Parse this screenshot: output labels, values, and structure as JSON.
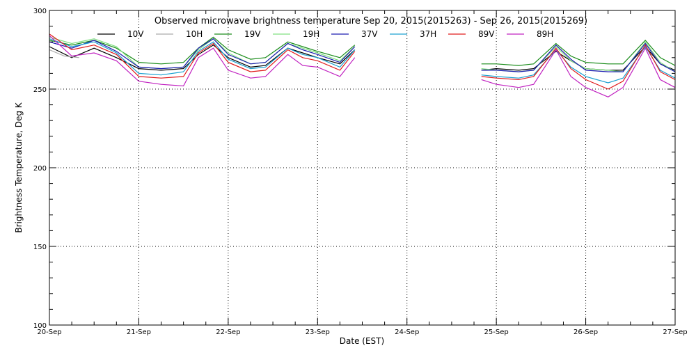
{
  "chart_data": {
    "type": "line",
    "title": "Observed microwave brightness temperature Sep 20, 2015(2015263) - Sep 26, 2015(2015269)",
    "xlabel": "Date (EST)",
    "ylabel": "Brightness Temperature, Deg K",
    "x_ticks": [
      "20-Sep",
      "21-Sep",
      "22-Sep",
      "23-Sep",
      "24-Sep",
      "25-Sep",
      "26-Sep",
      "27-Sep"
    ],
    "xlim": [
      "2015-09-20T00:00",
      "2015-09-27T00:00"
    ],
    "ylim": [
      100,
      300
    ],
    "y_ticks": [
      100,
      150,
      200,
      250,
      300
    ],
    "grid": true,
    "legend_position": "top",
    "series": [
      {
        "name": "10V",
        "color": "#000000",
        "x": [
          "2015-09-20T00:00",
          "2015-09-20T06:00",
          "2015-09-20T12:00",
          "2015-09-20T18:00",
          "2015-09-21T00:00",
          "2015-09-21T06:00",
          "2015-09-21T12:00",
          "2015-09-21T16:00",
          "2015-09-21T20:00",
          "2015-09-22T00:00",
          "2015-09-22T06:00",
          "2015-09-22T10:00",
          "2015-09-22T16:00",
          "2015-09-22T20:00",
          "2015-09-23T00:00",
          "2015-09-23T06:00",
          "2015-09-23T10:00",
          "2015-09-24T20:00",
          "2015-09-25T00:00",
          "2015-09-25T06:00",
          "2015-09-25T10:00",
          "2015-09-25T16:00",
          "2015-09-25T20:00",
          "2015-09-26T00:00",
          "2015-09-26T06:00",
          "2015-09-26T10:00",
          "2015-09-26T16:00",
          "2015-09-26T20:00",
          "2015-09-27T00:00"
        ],
        "y": [
          277,
          270,
          276,
          270,
          263,
          262,
          263,
          272,
          278,
          270,
          264,
          265,
          276,
          273,
          270,
          266,
          275,
          262,
          263,
          262,
          263,
          274,
          268,
          263,
          262,
          262,
          277,
          266,
          262
        ]
      },
      {
        "name": "10H",
        "color": "#aaaaaa",
        "x": [
          "2015-09-20T00:00",
          "2015-09-20T04:00",
          "2015-09-20T08:00"
        ],
        "y": [
          275,
          271,
          270
        ]
      },
      {
        "name": "19V",
        "color": "#1a8c1a",
        "x": [
          "2015-09-20T00:00",
          "2015-09-20T06:00",
          "2015-09-20T12:00",
          "2015-09-20T18:00",
          "2015-09-21T00:00",
          "2015-09-21T06:00",
          "2015-09-21T12:00",
          "2015-09-21T16:00",
          "2015-09-21T20:00",
          "2015-09-22T00:00",
          "2015-09-22T06:00",
          "2015-09-22T10:00",
          "2015-09-22T16:00",
          "2015-09-22T20:00",
          "2015-09-23T00:00",
          "2015-09-23T06:00",
          "2015-09-23T10:00",
          "2015-09-24T20:00",
          "2015-09-25T00:00",
          "2015-09-25T06:00",
          "2015-09-25T10:00",
          "2015-09-25T16:00",
          "2015-09-25T20:00",
          "2015-09-26T00:00",
          "2015-09-26T06:00",
          "2015-09-26T10:00",
          "2015-09-26T16:00",
          "2015-09-26T20:00",
          "2015-09-27T00:00"
        ],
        "y": [
          281,
          278,
          281,
          276,
          267,
          266,
          267,
          276,
          283,
          275,
          269,
          270,
          280,
          277,
          274,
          270,
          278,
          266,
          266,
          265,
          266,
          279,
          271,
          267,
          266,
          266,
          281,
          270,
          265
        ]
      },
      {
        "name": "19H",
        "color": "#80e080",
        "x": [
          "2015-09-20T00:00",
          "2015-09-20T06:00",
          "2015-09-20T12:00",
          "2015-09-20T18:00",
          "2015-09-21T00:00",
          "2015-09-21T06:00",
          "2015-09-21T12:00",
          "2015-09-21T16:00",
          "2015-09-21T20:00",
          "2015-09-22T00:00",
          "2015-09-22T06:00",
          "2015-09-22T10:00",
          "2015-09-22T16:00",
          "2015-09-22T20:00",
          "2015-09-23T00:00",
          "2015-09-23T06:00",
          "2015-09-23T10:00",
          "2015-09-24T20:00",
          "2015-09-25T00:00",
          "2015-09-25T06:00",
          "2015-09-25T10:00",
          "2015-09-25T16:00",
          "2015-09-25T20:00",
          "2015-09-26T00:00",
          "2015-09-26T06:00",
          "2015-09-26T10:00",
          "2015-09-26T16:00",
          "2015-09-26T20:00",
          "2015-09-27T00:00"
        ],
        "y": [
          283,
          279,
          282,
          277,
          264,
          263,
          264,
          275,
          282,
          273,
          266,
          267,
          279,
          276,
          273,
          268,
          277,
          263,
          262,
          261,
          262,
          277,
          268,
          263,
          262,
          261,
          280,
          267,
          261
        ]
      },
      {
        "name": "37V",
        "color": "#1a1ab0",
        "x": [
          "2015-09-20T00:00",
          "2015-09-20T06:00",
          "2015-09-20T12:00",
          "2015-09-20T18:00",
          "2015-09-21T00:00",
          "2015-09-21T06:00",
          "2015-09-21T12:00",
          "2015-09-21T16:00",
          "2015-09-21T20:00",
          "2015-09-22T00:00",
          "2015-09-22T06:00",
          "2015-09-22T10:00",
          "2015-09-22T16:00",
          "2015-09-22T20:00",
          "2015-09-23T00:00",
          "2015-09-23T06:00",
          "2015-09-23T10:00",
          "2015-09-24T20:00",
          "2015-09-25T00:00",
          "2015-09-25T06:00",
          "2015-09-25T10:00",
          "2015-09-25T16:00",
          "2015-09-25T20:00",
          "2015-09-26T00:00",
          "2015-09-26T06:00",
          "2015-09-26T10:00",
          "2015-09-26T16:00",
          "2015-09-26T20:00",
          "2015-09-27T00:00"
        ],
        "y": [
          280,
          276,
          281,
          274,
          264,
          263,
          264,
          276,
          282,
          272,
          266,
          267,
          279,
          275,
          272,
          267,
          277,
          262,
          262,
          261,
          262,
          278,
          269,
          262,
          261,
          261,
          279,
          266,
          261
        ]
      },
      {
        "name": "37H",
        "color": "#1aa0d0",
        "x": [
          "2015-09-20T00:00",
          "2015-09-20T06:00",
          "2015-09-20T12:00",
          "2015-09-20T18:00",
          "2015-09-21T00:00",
          "2015-09-21T06:00",
          "2015-09-21T12:00",
          "2015-09-21T16:00",
          "2015-09-21T20:00",
          "2015-09-22T00:00",
          "2015-09-22T06:00",
          "2015-09-22T10:00",
          "2015-09-22T16:00",
          "2015-09-22T20:00",
          "2015-09-23T00:00",
          "2015-09-23T06:00",
          "2015-09-23T10:00",
          "2015-09-24T20:00",
          "2015-09-25T00:00",
          "2015-09-25T06:00",
          "2015-09-25T10:00",
          "2015-09-25T16:00",
          "2015-09-25T20:00",
          "2015-09-26T00:00",
          "2015-09-26T06:00",
          "2015-09-26T10:00",
          "2015-09-26T16:00",
          "2015-09-26T20:00",
          "2015-09-27T00:00"
        ],
        "y": [
          282,
          277,
          280,
          273,
          260,
          259,
          261,
          274,
          280,
          269,
          263,
          264,
          276,
          272,
          270,
          264,
          275,
          259,
          258,
          257,
          259,
          275,
          264,
          258,
          254,
          257,
          277,
          262,
          257
        ]
      },
      {
        "name": "89V",
        "color": "#e01a1a",
        "x": [
          "2015-09-20T00:00",
          "2015-09-20T06:00",
          "2015-09-20T12:00",
          "2015-09-20T18:00",
          "2015-09-21T00:00",
          "2015-09-21T06:00",
          "2015-09-21T12:00",
          "2015-09-21T16:00",
          "2015-09-21T20:00",
          "2015-09-22T00:00",
          "2015-09-22T06:00",
          "2015-09-22T10:00",
          "2015-09-22T16:00",
          "2015-09-22T20:00",
          "2015-09-23T00:00",
          "2015-09-23T06:00",
          "2015-09-23T10:00",
          "2015-09-24T20:00",
          "2015-09-25T00:00",
          "2015-09-25T06:00",
          "2015-09-25T10:00",
          "2015-09-25T16:00",
          "2015-09-25T20:00",
          "2015-09-26T00:00",
          "2015-09-26T06:00",
          "2015-09-26T10:00",
          "2015-09-26T16:00",
          "2015-09-26T20:00",
          "2015-09-27T00:00"
        ],
        "y": [
          285,
          275,
          278,
          272,
          258,
          257,
          258,
          273,
          279,
          267,
          261,
          262,
          275,
          270,
          268,
          262,
          274,
          258,
          257,
          256,
          258,
          276,
          263,
          256,
          250,
          255,
          278,
          261,
          256
        ]
      },
      {
        "name": "89H",
        "color": "#c020c0",
        "x": [
          "2015-09-20T00:00",
          "2015-09-20T06:00",
          "2015-09-20T12:00",
          "2015-09-20T18:00",
          "2015-09-21T00:00",
          "2015-09-21T06:00",
          "2015-09-21T12:00",
          "2015-09-21T16:00",
          "2015-09-21T20:00",
          "2015-09-22T00:00",
          "2015-09-22T06:00",
          "2015-09-22T10:00",
          "2015-09-22T16:00",
          "2015-09-22T20:00",
          "2015-09-23T00:00",
          "2015-09-23T06:00",
          "2015-09-23T10:00",
          "2015-09-24T20:00",
          "2015-09-25T00:00",
          "2015-09-25T06:00",
          "2015-09-25T10:00",
          "2015-09-25T16:00",
          "2015-09-25T20:00",
          "2015-09-26T00:00",
          "2015-09-26T06:00",
          "2015-09-26T10:00",
          "2015-09-26T16:00",
          "2015-09-26T20:00",
          "2015-09-27T00:00"
        ],
        "y": [
          284,
          271,
          273,
          268,
          255,
          253,
          252,
          270,
          276,
          262,
          257,
          258,
          272,
          265,
          264,
          258,
          270,
          256,
          253,
          251,
          253,
          275,
          258,
          251,
          245,
          251,
          276,
          256,
          251
        ]
      }
    ]
  }
}
